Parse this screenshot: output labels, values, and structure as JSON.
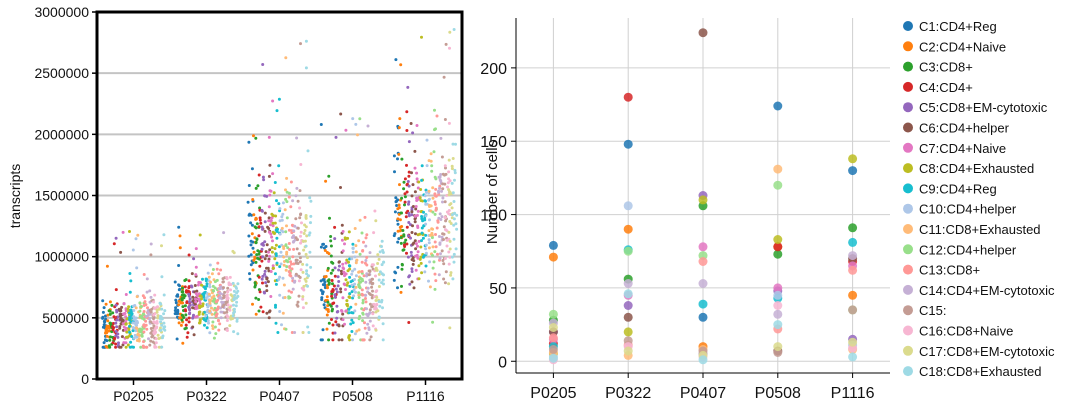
{
  "clusters": [
    {
      "name": "C1:CD4+Reg",
      "color": "#1f77b4"
    },
    {
      "name": "C2:CD4+Naive",
      "color": "#ff7f0e"
    },
    {
      "name": "C3:CD8+",
      "color": "#2ca02c"
    },
    {
      "name": "C4:CD4+",
      "color": "#d62728"
    },
    {
      "name": "C5:CD8+EM-cytotoxic",
      "color": "#9467bd"
    },
    {
      "name": "C6:CD4+helper",
      "color": "#8c564b"
    },
    {
      "name": "C7:CD4+Naive",
      "color": "#e377c2"
    },
    {
      "name": "C8:CD4+Exhausted",
      "color": "#bcbd22"
    },
    {
      "name": "C9:CD4+Reg",
      "color": "#17becf"
    },
    {
      "name": "C10:CD4+helper",
      "color": "#aec7e8"
    },
    {
      "name": "C11:CD8+Exhausted",
      "color": "#ffbb78"
    },
    {
      "name": "C12:CD4+helper",
      "color": "#98df8a"
    },
    {
      "name": "C13:CD8+",
      "color": "#ff9896"
    },
    {
      "name": "C14:CD4+EM-cytotoxic",
      "color": "#c5b0d5"
    },
    {
      "name": "C15:",
      "color": "#c49c94"
    },
    {
      "name": "C16:CD8+Naive",
      "color": "#f7b6d2"
    },
    {
      "name": "C17:CD8+EM-cytotoxic",
      "color": "#dbdb8d"
    },
    {
      "name": "C18:CD8+Exhausted",
      "color": "#9edae5"
    }
  ],
  "chart_data": [
    {
      "type": "scatter",
      "subtype": "strip",
      "ylabel": "transcripts",
      "xlabel": "",
      "categories": [
        "P0205",
        "P0322",
        "P0407",
        "P0508",
        "P1116"
      ],
      "ylim": [
        0,
        3000000
      ],
      "yticks": [
        0,
        500000,
        1000000,
        1500000,
        2000000,
        2500000,
        3000000
      ],
      "ytick_labels": [
        "0",
        "500000",
        "1000000",
        "1500000",
        "2000000",
        "2500000",
        "3000000"
      ],
      "grid": "horizontal",
      "distribution_by_sample": [
        {
          "sample": "P0205",
          "min": 260000,
          "max": 1230000,
          "median": 440000
        },
        {
          "sample": "P0322",
          "min": 290000,
          "max": 1250000,
          "median": 620000
        },
        {
          "sample": "P0407",
          "min": 380000,
          "max": 2790000,
          "median": 1030000
        },
        {
          "sample": "P0508",
          "min": 320000,
          "max": 2230000,
          "median": 720000
        },
        {
          "sample": "P1116",
          "min": 330000,
          "max": 2900000,
          "median": 1280000
        }
      ]
    },
    {
      "type": "scatter",
      "ylabel": "Number of cells",
      "xlabel": "",
      "categories": [
        "P0205",
        "P0322",
        "P0407",
        "P0508",
        "P1116"
      ],
      "ylim": [
        -8,
        234
      ],
      "yticks": [
        0,
        50,
        100,
        150,
        200
      ],
      "grid": "both",
      "legend": "right",
      "series": [
        {
          "name": "C1:CD4+Reg",
          "values": [
            79,
            148,
            30,
            174,
            130
          ]
        },
        {
          "name": "C2:CD4+Naive",
          "values": [
            71,
            90,
            10,
            78,
            45
          ]
        },
        {
          "name": "C3:CD8+",
          "values": [
            28,
            56,
            106,
            73,
            91
          ]
        },
        {
          "name": "C4:CD4+",
          "values": [
            12,
            180,
            5,
            78,
            68
          ]
        },
        {
          "name": "C5:CD8+EM-cytotoxic",
          "values": [
            20,
            38,
            113,
            48,
            15
          ]
        },
        {
          "name": "C6:CD4+helper",
          "values": [
            20,
            30,
            224,
            7,
            70
          ]
        },
        {
          "name": "C7:CD4+Naive",
          "values": [
            15,
            45,
            78,
            50,
            65
          ]
        },
        {
          "name": "C8:CD4+Exhausted",
          "values": [
            5,
            20,
            110,
            83,
            138
          ]
        },
        {
          "name": "C9:CD4+Reg",
          "values": [
            10,
            76,
            39,
            43,
            81
          ]
        },
        {
          "name": "C10:CD4+helper",
          "values": [
            3,
            106,
            5,
            45,
            11
          ]
        },
        {
          "name": "C11:CD8+Exhausted",
          "values": [
            6,
            4,
            8,
            131,
            8
          ]
        },
        {
          "name": "C12:CD4+helper",
          "values": [
            32,
            75,
            72,
            120,
            35
          ]
        },
        {
          "name": "C13:CD8+",
          "values": [
            16,
            11,
            68,
            22,
            62
          ]
        },
        {
          "name": "C14:CD4+EM-cytotoxic",
          "values": [
            26,
            53,
            53,
            32,
            72
          ]
        },
        {
          "name": "C15:",
          "values": [
            8,
            14,
            7,
            6,
            35
          ]
        },
        {
          "name": "C16:CD8+Naive",
          "values": [
            1,
            10,
            3,
            38,
            9
          ]
        },
        {
          "name": "C17:CD8+EM-cytotoxic",
          "values": [
            23,
            7,
            4,
            10,
            13
          ]
        },
        {
          "name": "C18:CD8+Exhausted",
          "values": [
            2,
            46,
            1,
            25,
            3
          ]
        }
      ]
    }
  ]
}
